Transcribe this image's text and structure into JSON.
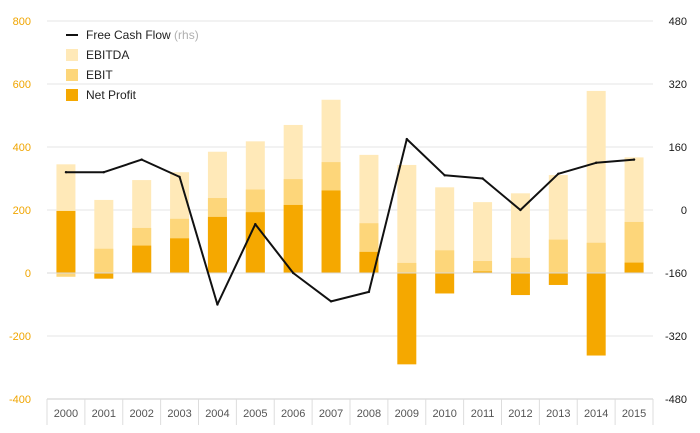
{
  "chart_data": {
    "type": "bar",
    "categories": [
      "2000",
      "2001",
      "2002",
      "2003",
      "2004",
      "2005",
      "2006",
      "2007",
      "2008",
      "2009",
      "2010",
      "2011",
      "2012",
      "2013",
      "2014",
      "2015"
    ],
    "series": [
      {
        "name": "EBITDA",
        "kind": "bar",
        "axis": "left",
        "color": "#ffe9b8",
        "values": [
          345,
          232,
          295,
          320,
          385,
          418,
          470,
          550,
          375,
          343,
          272,
          225,
          253,
          311,
          578,
          367
        ]
      },
      {
        "name": "EBIT",
        "kind": "bar",
        "axis": "left",
        "color": "#fdd67a",
        "values": [
          -12,
          77,
          143,
          172,
          238,
          265,
          298,
          352,
          158,
          32,
          72,
          38,
          48,
          106,
          96,
          162
        ]
      },
      {
        "name": "Net Profit",
        "kind": "bar",
        "axis": "left",
        "color": "#f5a800",
        "values": [
          197,
          -18,
          87,
          110,
          178,
          193,
          216,
          262,
          67,
          -290,
          -65,
          5,
          -70,
          -38,
          -262,
          33
        ]
      },
      {
        "name": "Free Cash Flow",
        "note": "(rhs)",
        "kind": "line",
        "axis": "right",
        "color": "#111111",
        "values": [
          96,
          96,
          128,
          84,
          -240,
          -36,
          -160,
          -232,
          -208,
          180,
          88,
          80,
          0,
          92,
          120,
          128
        ]
      }
    ],
    "yleft": {
      "ticks": [
        800,
        600,
        400,
        200,
        0,
        -200,
        -400
      ],
      "lim": [
        -400,
        800
      ]
    },
    "yright": {
      "ticks": [
        480,
        320,
        160,
        0,
        -160,
        -320,
        -480
      ],
      "lim": [
        -480,
        480
      ]
    },
    "legend_position": "top-left",
    "grid": true,
    "title": "",
    "xlabel": "",
    "ylabel": ""
  }
}
